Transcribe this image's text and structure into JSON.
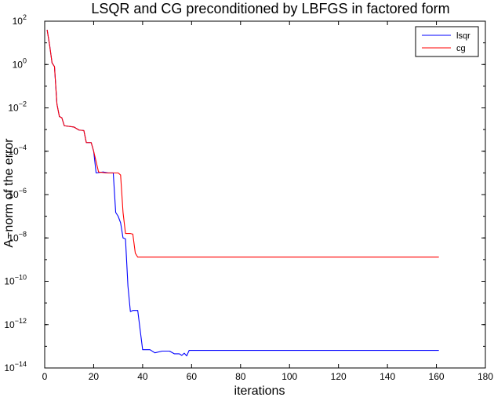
{
  "chart_data": {
    "type": "line",
    "title": "LSQR and CG preconditioned by LBFGS in factored form",
    "xlabel": "iterations",
    "ylabel": "A−norm of the error",
    "xlim": [
      0,
      180
    ],
    "ylim_log10": [
      -14,
      2
    ],
    "yscale": "log",
    "grid": false,
    "legend_position": "top-right",
    "xticks": [
      {
        "value": 0,
        "label": "0"
      },
      {
        "value": 20,
        "label": "20"
      },
      {
        "value": 40,
        "label": "40"
      },
      {
        "value": 60,
        "label": "60"
      },
      {
        "value": 80,
        "label": "80"
      },
      {
        "value": 100,
        "label": "100"
      },
      {
        "value": 120,
        "label": "120"
      },
      {
        "value": 140,
        "label": "140"
      },
      {
        "value": 160,
        "label": "160"
      },
      {
        "value": 180,
        "label": "180"
      }
    ],
    "yticks": [
      {
        "exp": 2,
        "base": "10",
        "power": "2"
      },
      {
        "exp": 0,
        "base": "10",
        "power": "0"
      },
      {
        "exp": -2,
        "base": "10",
        "power": "−2"
      },
      {
        "exp": -4,
        "base": "10",
        "power": "−4"
      },
      {
        "exp": -6,
        "base": "10",
        "power": "−6"
      },
      {
        "exp": -8,
        "base": "10",
        "power": "−8"
      },
      {
        "exp": -10,
        "base": "10",
        "power": "−10"
      },
      {
        "exp": -12,
        "base": "10",
        "power": "−12"
      },
      {
        "exp": -14,
        "base": "10",
        "power": "−14"
      }
    ],
    "series": [
      {
        "name": "lsqr",
        "color": "#0000ff",
        "points": [
          [
            1,
            40
          ],
          [
            2,
            8
          ],
          [
            3,
            1.2
          ],
          [
            4,
            0.8
          ],
          [
            5,
            0.015
          ],
          [
            6,
            0.004
          ],
          [
            7,
            0.0035
          ],
          [
            8,
            0.0015
          ],
          [
            12,
            0.0013
          ],
          [
            14,
            0.00095
          ],
          [
            16,
            0.0009
          ],
          [
            17,
            0.00025
          ],
          [
            19,
            0.00025
          ],
          [
            20,
            0.0001
          ],
          [
            21,
            1e-05
          ],
          [
            24,
            1.1e-05
          ],
          [
            26,
            1e-05
          ],
          [
            28,
            1e-05
          ],
          [
            29,
            1.5e-07
          ],
          [
            30,
            1e-07
          ],
          [
            31,
            5e-08
          ],
          [
            32,
            1e-08
          ],
          [
            33,
            9e-09
          ],
          [
            34,
            6e-11
          ],
          [
            35,
            4e-12
          ],
          [
            36,
            4.5e-12
          ],
          [
            38,
            4.5e-12
          ],
          [
            40,
            7e-14
          ],
          [
            43,
            7e-14
          ],
          [
            45,
            5e-14
          ],
          [
            48,
            6e-14
          ],
          [
            51,
            6e-14
          ],
          [
            53,
            4.5e-14
          ],
          [
            55,
            4.5e-14
          ],
          [
            56,
            3.8e-14
          ],
          [
            57,
            4.8e-14
          ],
          [
            58,
            3.6e-14
          ],
          [
            59,
            6.5e-14
          ],
          [
            80,
            6.5e-14
          ],
          [
            120,
            6.5e-14
          ],
          [
            161,
            6.5e-14
          ]
        ]
      },
      {
        "name": "cg",
        "color": "#ff0000",
        "points": [
          [
            1,
            40
          ],
          [
            2,
            8
          ],
          [
            3,
            1.2
          ],
          [
            4,
            0.8
          ],
          [
            5,
            0.015
          ],
          [
            6,
            0.004
          ],
          [
            7,
            0.0035
          ],
          [
            8,
            0.0015
          ],
          [
            12,
            0.0013
          ],
          [
            14,
            0.00095
          ],
          [
            16,
            0.0009
          ],
          [
            17,
            0.00025
          ],
          [
            19,
            0.00025
          ],
          [
            20,
            0.0001
          ],
          [
            22,
            1.1e-05
          ],
          [
            25,
            1e-05
          ],
          [
            28,
            1e-05
          ],
          [
            30,
            1e-05
          ],
          [
            31,
            8e-06
          ],
          [
            32,
            1.5e-07
          ],
          [
            33,
            1.6e-08
          ],
          [
            35,
            1.6e-08
          ],
          [
            36,
            1.5e-08
          ],
          [
            37,
            2e-09
          ],
          [
            38,
            1.3e-09
          ],
          [
            60,
            1.3e-09
          ],
          [
            100,
            1.3e-09
          ],
          [
            161,
            1.3e-09
          ]
        ]
      }
    ]
  }
}
